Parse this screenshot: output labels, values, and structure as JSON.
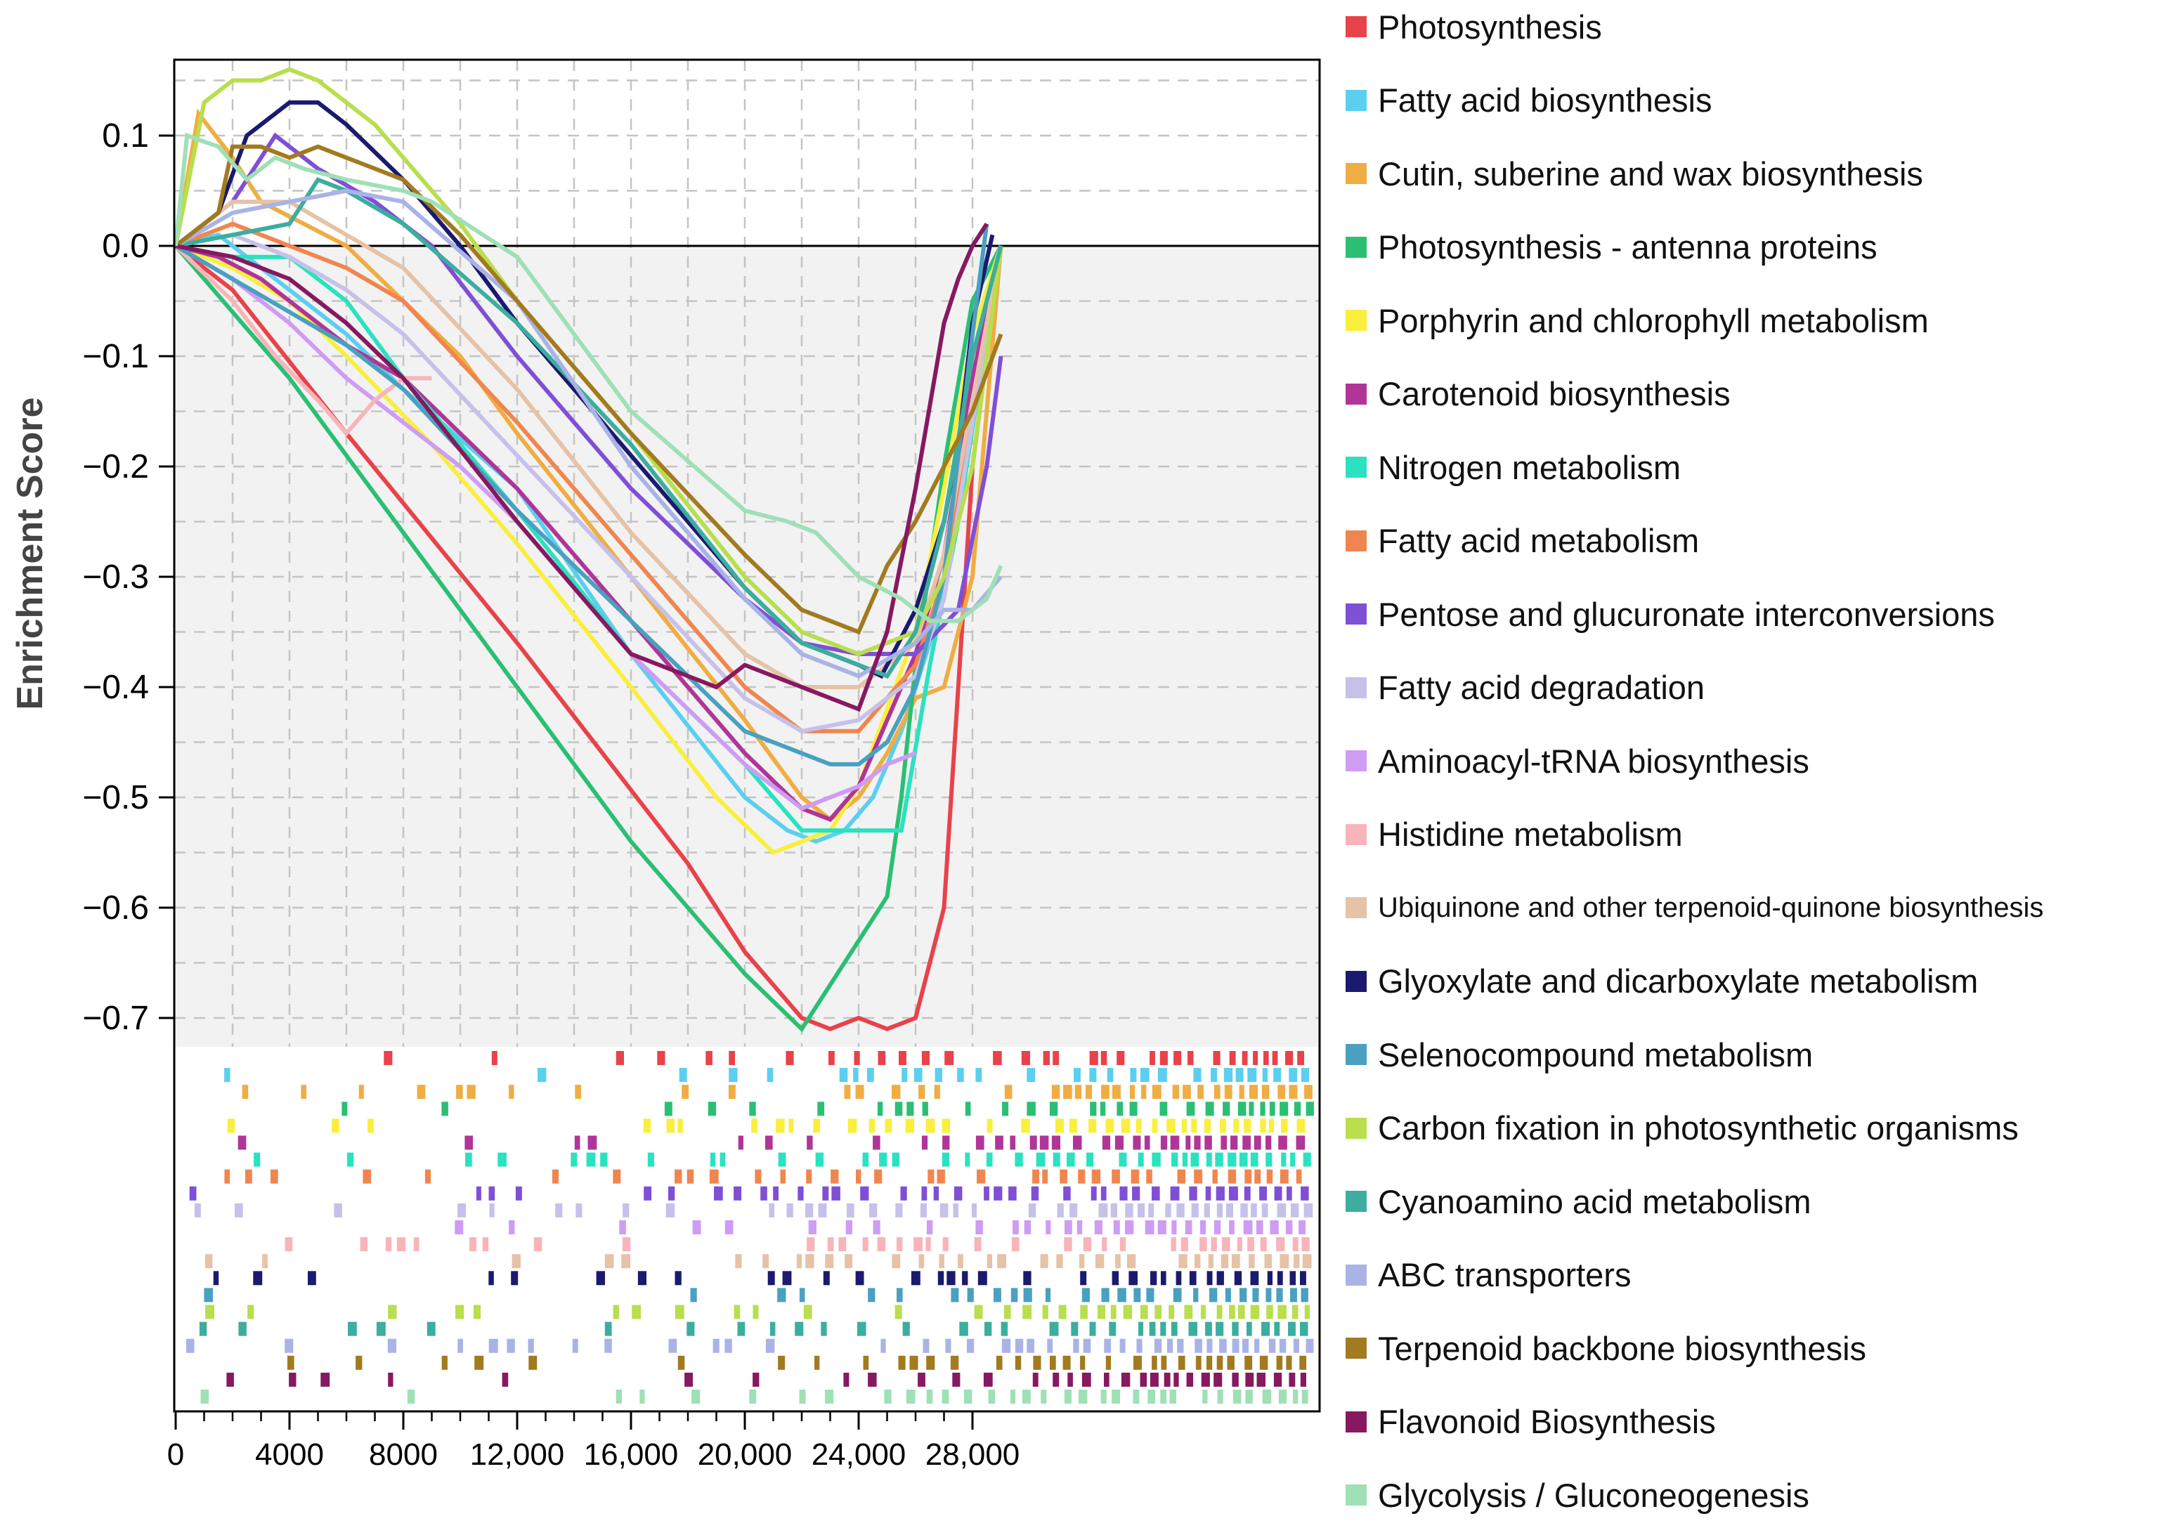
{
  "chart_data": {
    "type": "line",
    "ylabel": "Enrichment Score",
    "xlabel": "",
    "xlim": [
      0,
      29300
    ],
    "ylim": [
      -0.72,
      0.17
    ],
    "xticks": [
      0,
      4000,
      8000,
      12000,
      16000,
      20000,
      24000,
      28000
    ],
    "xtick_labels": [
      "0",
      "4000",
      "8000",
      "12,000",
      "16,000",
      "20,000",
      "24,000",
      "28,000"
    ],
    "yticks": [
      0.1,
      0.0,
      -0.1,
      -0.2,
      -0.3,
      -0.4,
      -0.5,
      -0.6,
      -0.7
    ],
    "ytick_labels": [
      "0.1",
      "0.0",
      "−0.1",
      "−0.2",
      "−0.3",
      "−0.4",
      "−0.5",
      "−0.6",
      "−0.7"
    ],
    "grid": true,
    "legend_position": "right",
    "series": [
      {
        "name": "Photosynthesis",
        "color": "#e8424a",
        "x": [
          0,
          2000,
          6000,
          12000,
          18000,
          20000,
          22000,
          23000,
          24000,
          25000,
          26000,
          26500,
          27000,
          27500,
          28000,
          29000
        ],
        "y": [
          0,
          -0.04,
          -0.17,
          -0.36,
          -0.56,
          -0.64,
          -0.7,
          -0.71,
          -0.7,
          -0.71,
          -0.7,
          -0.65,
          -0.6,
          -0.4,
          -0.2,
          0.0
        ]
      },
      {
        "name": "Fatty acid biosynthesis",
        "color": "#5bcfef",
        "x": [
          0,
          1500,
          3000,
          4500,
          6000,
          8000,
          12000,
          16000,
          20000,
          21500,
          22500,
          23500,
          24500,
          25500,
          26500,
          27500,
          28500,
          29000
        ],
        "y": [
          0,
          0.01,
          -0.02,
          -0.05,
          -0.08,
          -0.13,
          -0.22,
          -0.37,
          -0.5,
          -0.53,
          -0.54,
          -0.53,
          -0.5,
          -0.44,
          -0.36,
          -0.25,
          -0.05,
          0.0
        ]
      },
      {
        "name": "Cutin, suberine and wax biosynthesis",
        "color": "#efad42",
        "x": [
          0,
          800,
          2000,
          3000,
          4500,
          6000,
          8000,
          10000,
          12000,
          16000,
          20000,
          22000,
          23000,
          24000,
          25000,
          26000,
          27000,
          28000,
          29000
        ],
        "y": [
          0,
          0.12,
          0.08,
          0.04,
          0.02,
          0.0,
          -0.05,
          -0.1,
          -0.17,
          -0.3,
          -0.43,
          -0.5,
          -0.52,
          -0.5,
          -0.46,
          -0.41,
          -0.4,
          -0.3,
          0.0
        ]
      },
      {
        "name": "Photosynthesis - antenna proteins",
        "color": "#2bbf74",
        "x": [
          0,
          4000,
          8000,
          12000,
          16000,
          20000,
          22000,
          23000,
          24000,
          25000,
          25500,
          26000,
          27000,
          28000,
          29000
        ],
        "y": [
          0,
          -0.12,
          -0.26,
          -0.4,
          -0.54,
          -0.66,
          -0.71,
          -0.67,
          -0.63,
          -0.59,
          -0.5,
          -0.38,
          -0.2,
          -0.05,
          0.0
        ]
      },
      {
        "name": "Porphyrin and chlorophyll metabolism",
        "color": "#f9ef3c",
        "x": [
          0,
          2000,
          4000,
          6000,
          9000,
          12000,
          16000,
          19000,
          21000,
          22000,
          23000,
          24000,
          25000,
          26000,
          27000,
          28000,
          29000
        ],
        "y": [
          0,
          -0.02,
          -0.05,
          -0.1,
          -0.18,
          -0.27,
          -0.4,
          -0.5,
          -0.55,
          -0.54,
          -0.53,
          -0.49,
          -0.42,
          -0.35,
          -0.22,
          -0.08,
          0.0
        ]
      },
      {
        "name": "Carotenoid biosynthesis",
        "color": "#b03598",
        "x": [
          0,
          1500,
          3000,
          4500,
          6000,
          8000,
          12000,
          16000,
          20000,
          22000,
          23000,
          24000,
          25000,
          26000,
          27000,
          28000,
          29000
        ],
        "y": [
          0,
          -0.01,
          -0.03,
          -0.06,
          -0.09,
          -0.12,
          -0.22,
          -0.34,
          -0.46,
          -0.51,
          -0.52,
          -0.49,
          -0.43,
          -0.37,
          -0.28,
          -0.12,
          0.0
        ]
      },
      {
        "name": "Nitrogen metabolism",
        "color": "#2ae2bf",
        "x": [
          0,
          2000,
          4000,
          6000,
          8000,
          12000,
          16000,
          20000,
          22000,
          24000,
          25500,
          26500,
          27500,
          28500,
          29000
        ],
        "y": [
          0,
          -0.01,
          -0.01,
          -0.05,
          -0.12,
          -0.24,
          -0.37,
          -0.47,
          -0.53,
          -0.53,
          -0.53,
          -0.38,
          -0.25,
          -0.08,
          0.0
        ]
      },
      {
        "name": "Fatty acid metabolism",
        "color": "#f0864f",
        "x": [
          0,
          2000,
          4000,
          6000,
          8000,
          12000,
          16000,
          20000,
          22000,
          24000,
          26000,
          27000,
          28000,
          29000
        ],
        "y": [
          0,
          0.02,
          0.0,
          -0.02,
          -0.05,
          -0.16,
          -0.28,
          -0.4,
          -0.44,
          -0.44,
          -0.38,
          -0.3,
          -0.16,
          0.0
        ]
      },
      {
        "name": "Pentose and glucuronate interconversions",
        "color": "#7f4fd6",
        "x": [
          0,
          2000,
          3500,
          5000,
          7000,
          9000,
          12000,
          16000,
          20000,
          22000,
          24000,
          26000,
          27500,
          28500,
          29000
        ],
        "y": [
          0,
          0.04,
          0.1,
          0.07,
          0.04,
          0.0,
          -0.1,
          -0.22,
          -0.32,
          -0.36,
          -0.37,
          -0.37,
          -0.33,
          -0.2,
          -0.1
        ]
      },
      {
        "name": "Fatty acid degradation",
        "color": "#c6c1ea",
        "x": [
          0,
          2000,
          4000,
          6000,
          8000,
          12000,
          16000,
          20000,
          22000,
          24000,
          26000,
          27000,
          28000,
          29000
        ],
        "y": [
          0,
          0.01,
          -0.01,
          -0.04,
          -0.08,
          -0.19,
          -0.3,
          -0.41,
          -0.44,
          -0.43,
          -0.39,
          -0.32,
          -0.16,
          0.0
        ]
      },
      {
        "name": "Aminoacyl-tRNA biosynthesis",
        "color": "#cf9cf4",
        "x": [
          0,
          2000,
          4000,
          6000,
          8000,
          10000,
          12000,
          16000,
          20000,
          22000,
          24000,
          25000,
          26000
        ],
        "y": [
          0,
          -0.03,
          -0.07,
          -0.12,
          -0.16,
          -0.2,
          -0.25,
          -0.37,
          -0.47,
          -0.51,
          -0.49,
          -0.47,
          -0.46
        ]
      },
      {
        "name": "Histidine metabolism",
        "color": "#f7b5b9",
        "x": [
          0,
          2000,
          3500,
          5000,
          6000,
          7000,
          8000,
          9000
        ],
        "y": [
          0,
          -0.05,
          -0.1,
          -0.14,
          -0.17,
          -0.14,
          -0.12,
          -0.12
        ]
      },
      {
        "name": "Ubiquinone and other terpenoid-quinone biosynthesis",
        "color": "#e6c2a6",
        "x": [
          0,
          2000,
          4000,
          6000,
          8000,
          12000,
          16000,
          20000,
          22000,
          24000,
          26000,
          27000,
          28000,
          29000
        ],
        "y": [
          0,
          0.04,
          0.04,
          0.01,
          -0.02,
          -0.13,
          -0.26,
          -0.37,
          -0.4,
          -0.4,
          -0.36,
          -0.28,
          -0.14,
          0.0
        ]
      },
      {
        "name": "Glyoxylate and dicarboxylate metabolism",
        "color": "#1b1a6e",
        "x": [
          0,
          1500,
          2500,
          3500,
          4000,
          5000,
          6000,
          8000,
          10000,
          12000,
          16000,
          20000,
          22000,
          24000,
          24800,
          26000,
          27000,
          27500,
          28000,
          28700
        ],
        "y": [
          0,
          0.03,
          0.1,
          0.12,
          0.13,
          0.13,
          0.11,
          0.06,
          0.0,
          -0.07,
          -0.19,
          -0.31,
          -0.36,
          -0.38,
          -0.39,
          -0.33,
          -0.25,
          -0.18,
          -0.07,
          0.01
        ]
      },
      {
        "name": "Selenocompound metabolism",
        "color": "#4aa0c0",
        "x": [
          0,
          2000,
          4000,
          6000,
          8000,
          12000,
          16000,
          20000,
          22000,
          23000,
          24000,
          25000,
          26000,
          27000,
          28000,
          28500
        ],
        "y": [
          0,
          -0.03,
          -0.06,
          -0.09,
          -0.13,
          -0.24,
          -0.34,
          -0.44,
          -0.46,
          -0.47,
          -0.47,
          -0.45,
          -0.4,
          -0.3,
          -0.08,
          0.02
        ]
      },
      {
        "name": "Carbon fixation in photosynthetic organisms",
        "color": "#b9de4e",
        "x": [
          0,
          1000,
          2000,
          3000,
          4000,
          5000,
          6000,
          7000,
          8000,
          10000,
          12000,
          16000,
          20000,
          22000,
          24000,
          26000,
          27000,
          28000,
          29000
        ],
        "y": [
          0,
          0.13,
          0.15,
          0.15,
          0.16,
          0.15,
          0.13,
          0.11,
          0.08,
          0.02,
          -0.05,
          -0.17,
          -0.3,
          -0.35,
          -0.37,
          -0.35,
          -0.3,
          -0.2,
          0.0
        ]
      },
      {
        "name": "Cyanoamino acid metabolism",
        "color": "#3cad9e",
        "x": [
          0,
          2000,
          4000,
          5000,
          6000,
          8000,
          12000,
          16000,
          20000,
          22000,
          24000,
          25000,
          26000,
          27000,
          28000,
          29000
        ],
        "y": [
          0,
          0.01,
          0.02,
          0.06,
          0.05,
          0.02,
          -0.07,
          -0.18,
          -0.31,
          -0.36,
          -0.38,
          -0.39,
          -0.35,
          -0.25,
          -0.1,
          0.0
        ]
      },
      {
        "name": "ABC transporters",
        "color": "#a9b3e6",
        "x": [
          0,
          2000,
          4000,
          6000,
          8000,
          12000,
          16000,
          20000,
          22000,
          24000,
          26000,
          27000,
          28000,
          29000
        ],
        "y": [
          0,
          0.03,
          0.04,
          0.05,
          0.04,
          -0.05,
          -0.2,
          -0.32,
          -0.37,
          -0.39,
          -0.36,
          -0.33,
          -0.33,
          -0.3
        ]
      },
      {
        "name": "Terpenoid backbone biosynthesis",
        "color": "#a27a1f",
        "x": [
          0,
          1500,
          2000,
          3000,
          4000,
          5000,
          6000,
          7000,
          8000,
          10000,
          12000,
          16000,
          20000,
          22000,
          24000,
          25000,
          26000,
          27000,
          28000,
          29000
        ],
        "y": [
          0,
          0.03,
          0.09,
          0.09,
          0.08,
          0.09,
          0.08,
          0.07,
          0.06,
          0.01,
          -0.05,
          -0.17,
          -0.28,
          -0.33,
          -0.35,
          -0.29,
          -0.25,
          -0.2,
          -0.15,
          -0.08
        ]
      },
      {
        "name": "Flavonoid Biosynthesis",
        "color": "#861960",
        "x": [
          0,
          2000,
          4000,
          6000,
          8000,
          12000,
          16000,
          19000,
          20000,
          22000,
          24000,
          25000,
          26000,
          27000,
          27500,
          28000,
          28500
        ],
        "y": [
          0,
          -0.01,
          -0.03,
          -0.07,
          -0.12,
          -0.25,
          -0.37,
          -0.4,
          -0.38,
          -0.4,
          -0.42,
          -0.35,
          -0.22,
          -0.07,
          -0.03,
          0.0,
          0.02
        ]
      },
      {
        "name": "Glycolysis / Gluconeogenesis",
        "color": "#9fe0b6",
        "x": [
          0,
          400,
          1500,
          2500,
          3500,
          4500,
          6000,
          8000,
          9000,
          12000,
          16000,
          20000,
          21500,
          22500,
          24000,
          25500,
          26500,
          27500,
          28500,
          29000
        ],
        "y": [
          0,
          0.1,
          0.09,
          0.06,
          0.08,
          0.07,
          0.06,
          0.05,
          0.04,
          -0.01,
          -0.15,
          -0.24,
          -0.25,
          -0.26,
          -0.3,
          -0.32,
          -0.34,
          -0.34,
          -0.32,
          -0.29
        ]
      }
    ]
  }
}
